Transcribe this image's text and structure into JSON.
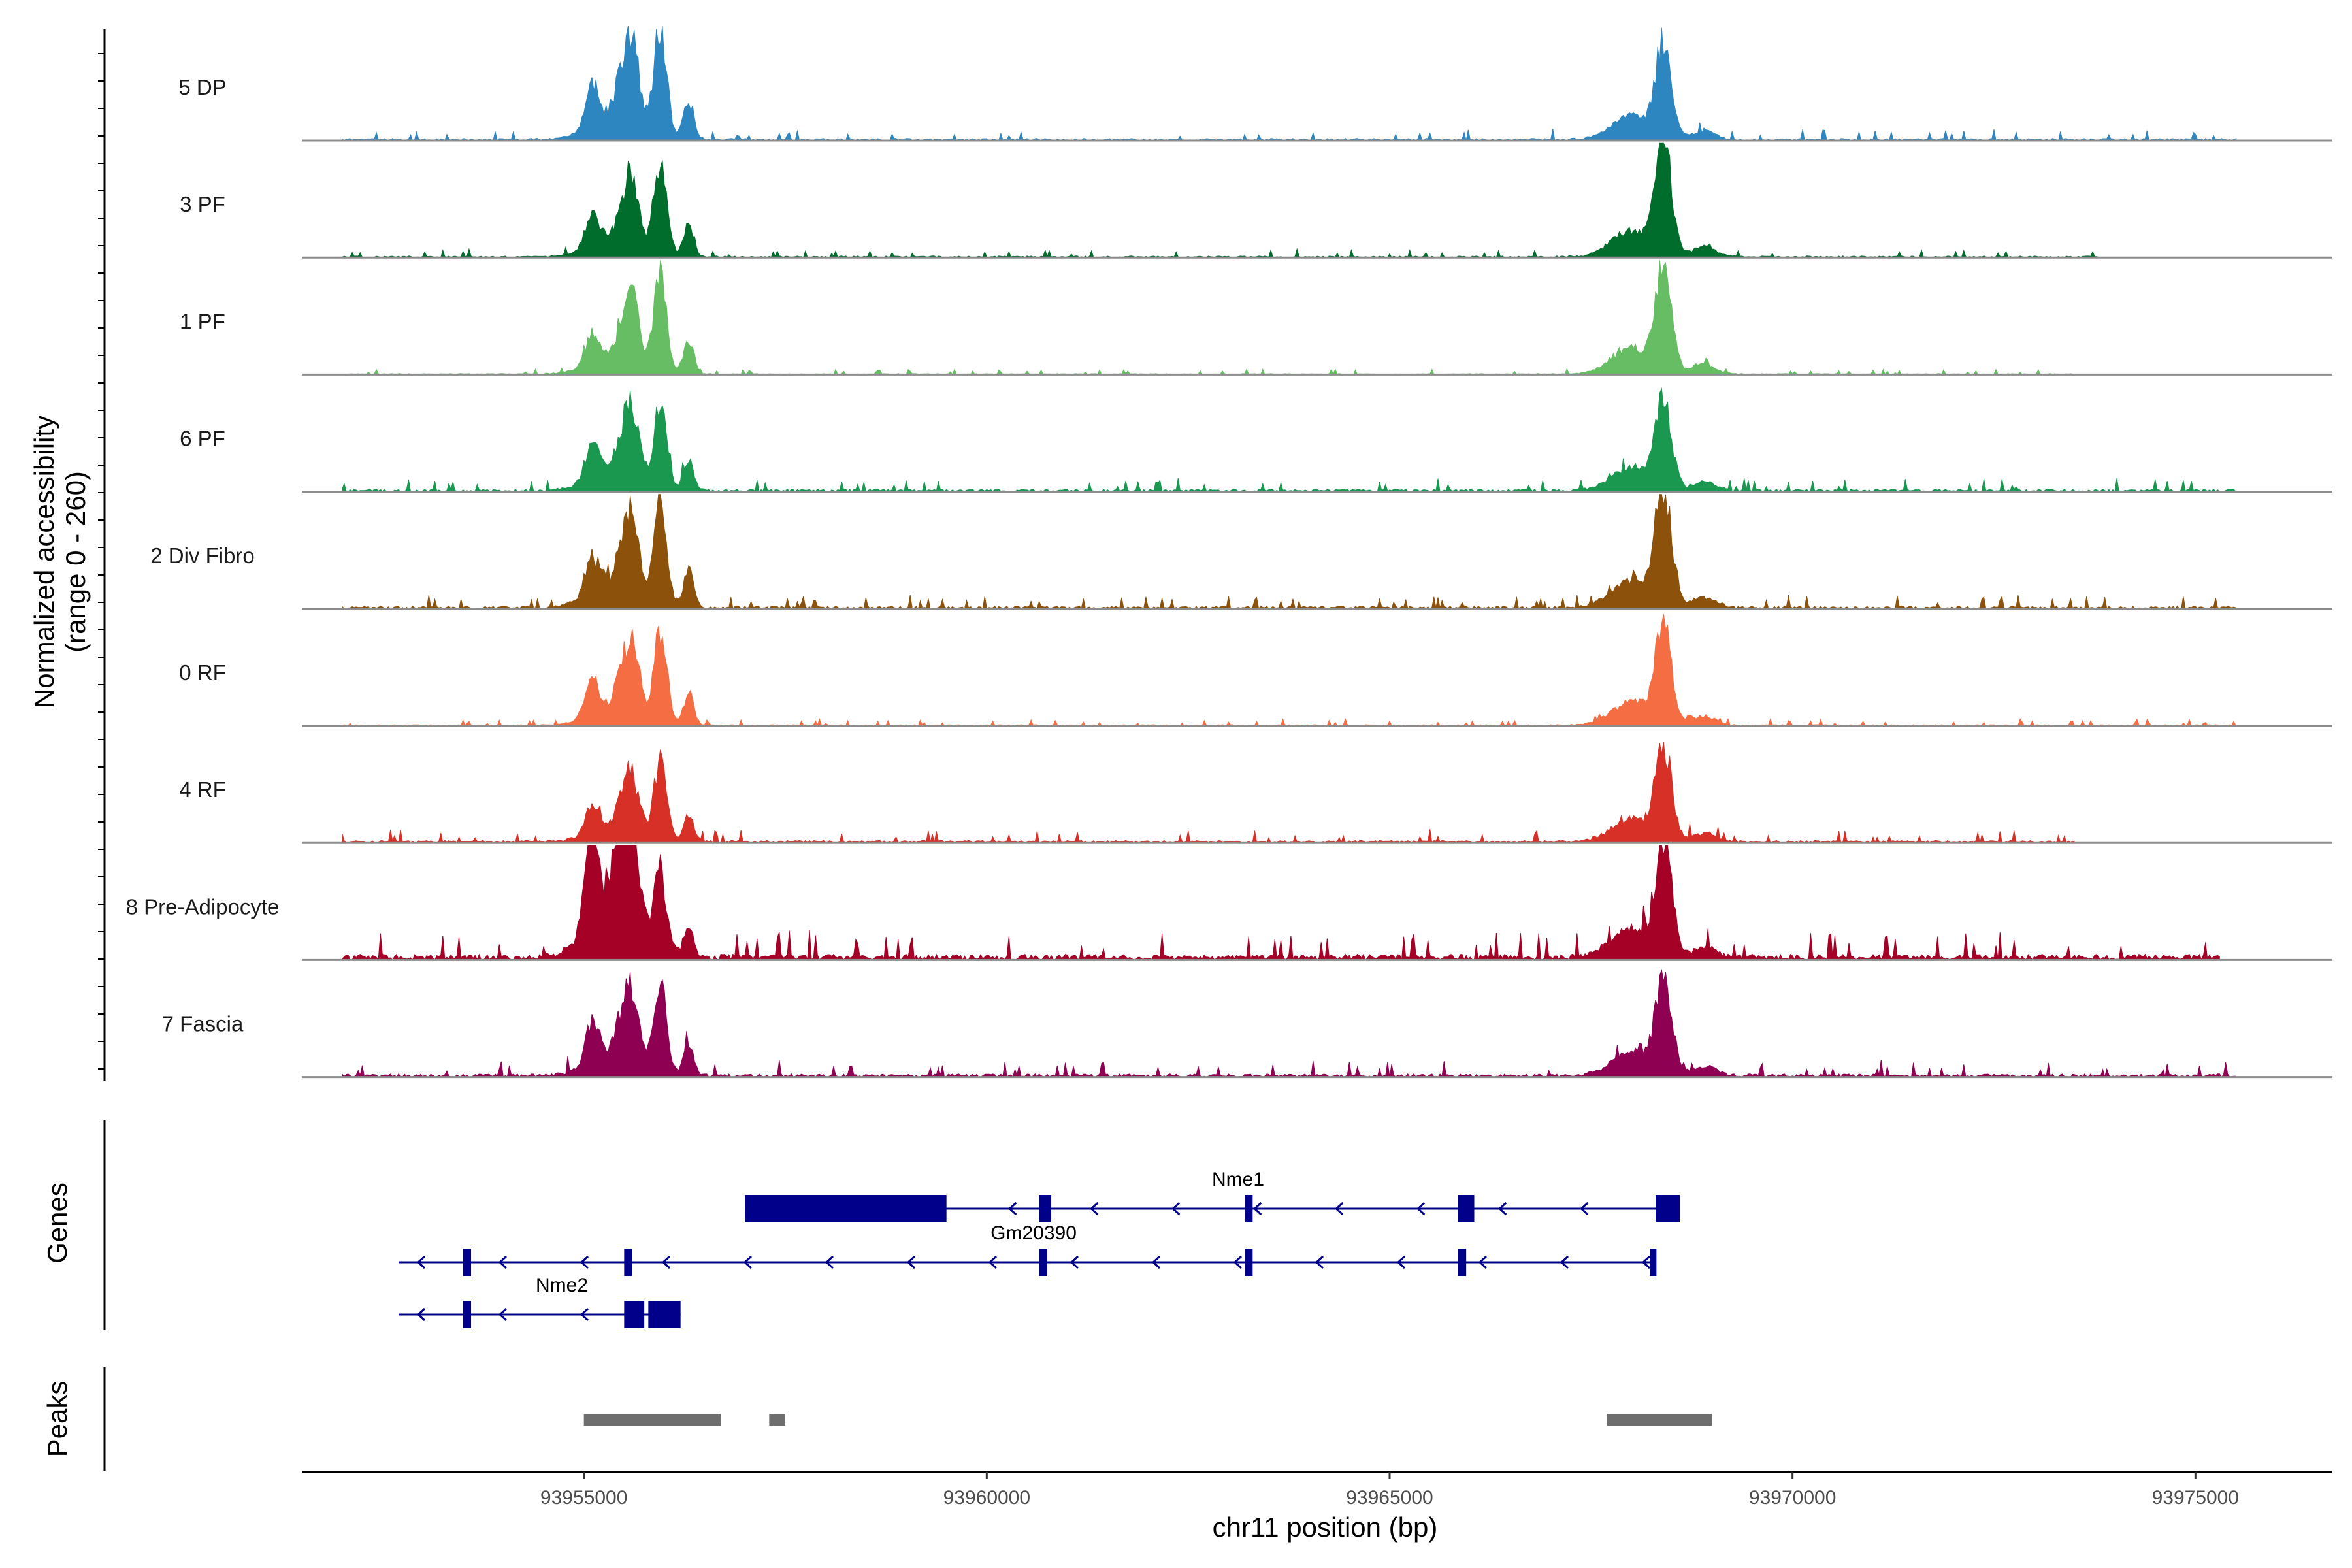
{
  "chart_data": {
    "type": "genome-track",
    "region": {
      "chromosome": "chr11",
      "start": 93951500,
      "end": 93976700
    },
    "y_axis_title": [
      "Normalized accessibility",
      "(range 0 - 260)"
    ],
    "y_range": [
      0,
      260
    ],
    "x_axis_title": "chr11 position (bp)",
    "x_ticks": [
      93955000,
      93960000,
      93965000,
      93970000,
      93975000
    ],
    "x_tick_labels": [
      "93955000",
      "93960000",
      "93965000",
      "93970000",
      "93975000"
    ],
    "track_genes_label": "Genes",
    "track_peaks_label": "Peaks",
    "tracks": [
      {
        "name": "5 DP",
        "color": "#2e86c1",
        "peak_heights": {
          "p1": 95,
          "p2": 245,
          "p3": 210
        },
        "noise": 8,
        "right_end": 93975500
      },
      {
        "name": "3 PF",
        "color": "#006d2c",
        "peak_heights": {
          "p1": 70,
          "p2": 200,
          "p3": 240
        },
        "noise": 6,
        "right_end": 93973800
      },
      {
        "name": "1 PF",
        "color": "#66bd63",
        "peak_heights": {
          "p1": 70,
          "p2": 215,
          "p3": 240
        },
        "noise": 4,
        "right_end": 93973500
      },
      {
        "name": "6 PF",
        "color": "#1a9850",
        "peak_heights": {
          "p1": 80,
          "p2": 190,
          "p3": 195
        },
        "noise": 10,
        "right_end": 93975500
      },
      {
        "name": "2 Div Fibro",
        "color": "#8c510a",
        "peak_heights": {
          "p1": 90,
          "p2": 240,
          "p3": 250
        },
        "noise": 10,
        "right_end": 93975500
      },
      {
        "name": "0 RF",
        "color": "#f46d43",
        "peak_heights": {
          "p1": 75,
          "p2": 205,
          "p3": 215
        },
        "noise": 5,
        "right_end": 93975500
      },
      {
        "name": "4 RF",
        "color": "#d73027",
        "peak_heights": {
          "p1": 60,
          "p2": 180,
          "p3": 210
        },
        "noise": 10,
        "right_end": 93973500
      },
      {
        "name": "8 Pre-Adipocyte",
        "color": "#a50026",
        "peak_heights": {
          "p1": 235,
          "p2": 175,
          "p3": 255
        },
        "noise": 22,
        "right_end": 93975300
      },
      {
        "name": "7 Fascia",
        "color": "#8e0152",
        "peak_heights": {
          "p1": 85,
          "p2": 205,
          "p3": 215
        },
        "noise": 12,
        "right_end": 93975500
      }
    ],
    "genes": [
      {
        "name": "Nme1",
        "strand": "-",
        "start": 93957000,
        "end": 93968600,
        "exons": [
          [
            93957000,
            93959500
          ],
          [
            93960650,
            93960800
          ],
          [
            93963200,
            93963300
          ],
          [
            93965850,
            93966050
          ],
          [
            93968300,
            93968600
          ]
        ]
      },
      {
        "name": "Gm20390",
        "strand": "-",
        "start": 93952700,
        "end": 93968300,
        "exons": [
          [
            93953500,
            93953600
          ],
          [
            93955500,
            93955600
          ],
          [
            93960650,
            93960750
          ],
          [
            93963200,
            93963300
          ],
          [
            93965850,
            93965950
          ],
          [
            93968230,
            93968300
          ]
        ]
      },
      {
        "name": "Nme2",
        "strand": "-",
        "start": 93952700,
        "end": 93956200,
        "exons": [
          [
            93953500,
            93953600
          ],
          [
            93955500,
            93955750
          ],
          [
            93955800,
            93956200
          ]
        ]
      }
    ],
    "peaks": [
      [
        93955000,
        93956700
      ],
      [
        93957300,
        93957500
      ],
      [
        93967700,
        93969000
      ]
    ]
  }
}
